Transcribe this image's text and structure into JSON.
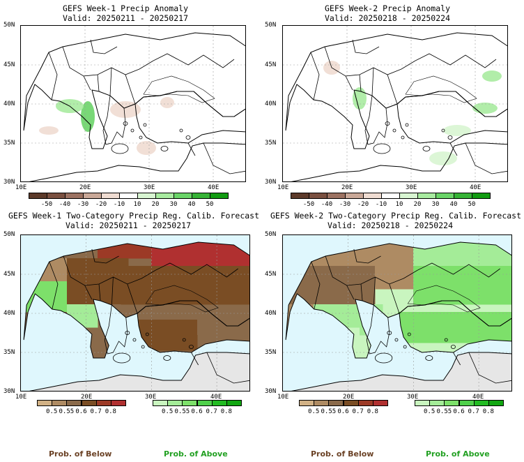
{
  "panels": [
    {
      "title": "GEFS Week-1 Precip Anomaly",
      "valid": "Valid: 20250211 - 20250217",
      "type": "anomaly",
      "lat_labels": [
        "50N",
        "45N",
        "40N",
        "35N",
        "30N"
      ],
      "lon_labels": [
        "10E",
        "20E",
        "30E",
        "40E"
      ]
    },
    {
      "title": "GEFS Week-2 Precip Anomaly",
      "valid": "Valid: 20250218 - 20250224",
      "type": "anomaly",
      "lat_labels": [
        "50N",
        "45N",
        "40N",
        "35N",
        "30N"
      ],
      "lon_labels": [
        "10E",
        "20E",
        "30E",
        "40E"
      ]
    },
    {
      "title": "GEFS Week-1 Two-Category Precip Reg. Calib. Forecast",
      "valid": "Valid: 20250211 - 20250217",
      "type": "probability",
      "lat_labels": [
        "50N",
        "45N",
        "40N",
        "35N",
        "30N"
      ],
      "lon_labels": [
        "10E",
        "20E",
        "30E",
        "40E"
      ]
    },
    {
      "title": "GEFS Week-2 Two-Category Precip Reg. Calib. Forecast",
      "valid": "Valid: 20250218 - 20250224",
      "type": "probability",
      "lat_labels": [
        "50N",
        "45N",
        "40N",
        "35N",
        "30N"
      ],
      "lon_labels": [
        "10E",
        "20E",
        "30E",
        "40E"
      ]
    }
  ],
  "anomaly_colorbar": {
    "labels": [
      "-50",
      "-40",
      "-30",
      "-20",
      "-10",
      "10",
      "20",
      "30",
      "40",
      "50"
    ],
    "colors": [
      "#5c3a2a",
      "#7a5040",
      "#9c7262",
      "#c9a898",
      "#efdcd2",
      "#ffffff",
      "#d8f5d2",
      "#a8eba0",
      "#6ad468",
      "#36b336",
      "#119b11"
    ]
  },
  "prob_below_colorbar": {
    "labels": [
      "0.5",
      "0.55",
      "0.6",
      "0.7",
      "0.8"
    ],
    "colors": [
      "#d1b185",
      "#ae8b63",
      "#8a6a4a",
      "#7a4d24",
      "#9c3a26",
      "#b03030"
    ]
  },
  "prob_above_colorbar": {
    "labels": [
      "0.5",
      "0.55",
      "0.6",
      "0.7",
      "0.8"
    ],
    "colors": [
      "#c9f5bf",
      "#a4ec98",
      "#7de06a",
      "#4fd04a",
      "#22bb22",
      "#11a611"
    ]
  },
  "legend": {
    "below_label": "Prob. of Below",
    "above_label": "Prob. of Above",
    "below_color": "#6b4226",
    "above_color": "#22a022"
  },
  "map_colors": {
    "sea_probability": "#dff7fd",
    "no_data": "#e6e6e6"
  }
}
